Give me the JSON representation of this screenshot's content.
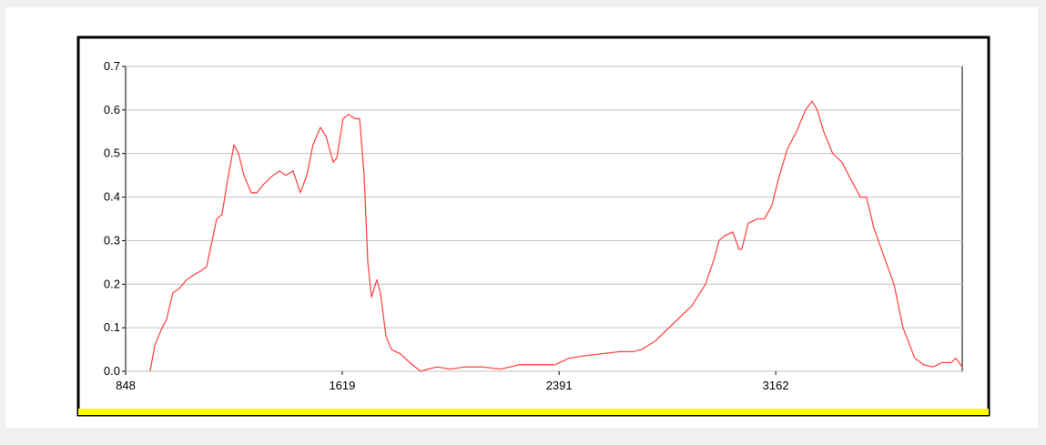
{
  "chart_data": {
    "type": "line",
    "x": [
      935,
      952,
      978,
      994,
      1016,
      1039,
      1065,
      1088,
      1114,
      1136,
      1156,
      1172,
      1191,
      1211,
      1234,
      1250,
      1269,
      1295,
      1315,
      1340,
      1373,
      1396,
      1418,
      1444,
      1470,
      1493,
      1515,
      1541,
      1561,
      1587,
      1600,
      1622,
      1642,
      1664,
      1681,
      1697,
      1710,
      1723,
      1742,
      1755,
      1775,
      1794,
      1826,
      1859,
      1898,
      1924,
      1956,
      2005,
      2053,
      2118,
      2183,
      2248,
      2312,
      2377,
      2426,
      2474,
      2539,
      2604,
      2653,
      2685,
      2734,
      2798,
      2863,
      2912,
      2944,
      2960,
      2977,
      3009,
      3032,
      3041,
      3064,
      3097,
      3122,
      3148,
      3171,
      3203,
      3236,
      3268,
      3291,
      3310,
      3333,
      3365,
      3398,
      3430,
      3463,
      3485,
      3511,
      3544,
      3583,
      3615,
      3657,
      3689,
      3722,
      3754,
      3787,
      3803,
      3826
    ],
    "series": [
      {
        "color": "#ff4a4a",
        "values": [
          0.0,
          0.06,
          0.1,
          0.12,
          0.18,
          0.19,
          0.21,
          0.22,
          0.23,
          0.24,
          0.3,
          0.35,
          0.36,
          0.44,
          0.52,
          0.5,
          0.45,
          0.41,
          0.41,
          0.43,
          0.45,
          0.46,
          0.45,
          0.46,
          0.41,
          0.45,
          0.52,
          0.56,
          0.54,
          0.48,
          0.49,
          0.58,
          0.59,
          0.58,
          0.58,
          0.45,
          0.25,
          0.17,
          0.21,
          0.18,
          0.08,
          0.05,
          0.04,
          0.02,
          0.0,
          0.005,
          0.01,
          0.005,
          0.01,
          0.01,
          0.005,
          0.015,
          0.015,
          0.015,
          0.03,
          0.035,
          0.04,
          0.045,
          0.045,
          0.05,
          0.07,
          0.11,
          0.15,
          0.2,
          0.26,
          0.3,
          0.31,
          0.32,
          0.28,
          0.28,
          0.34,
          0.35,
          0.35,
          0.38,
          0.44,
          0.51,
          0.55,
          0.6,
          0.62,
          0.6,
          0.55,
          0.5,
          0.48,
          0.44,
          0.4,
          0.4,
          0.33,
          0.27,
          0.2,
          0.1,
          0.03,
          0.015,
          0.01,
          0.02,
          0.02,
          0.03,
          0.01
        ]
      }
    ],
    "xlim": [
      848,
      3826
    ],
    "xticks": [
      848,
      1619,
      2391,
      3162
    ],
    "ylim": [
      0,
      0.7
    ],
    "yticks": [
      {
        "value": 0,
        "label": "0.0"
      },
      0.1,
      0.2,
      0.3,
      0.4,
      0.5,
      0.6,
      0.7
    ],
    "grid": true
  }
}
